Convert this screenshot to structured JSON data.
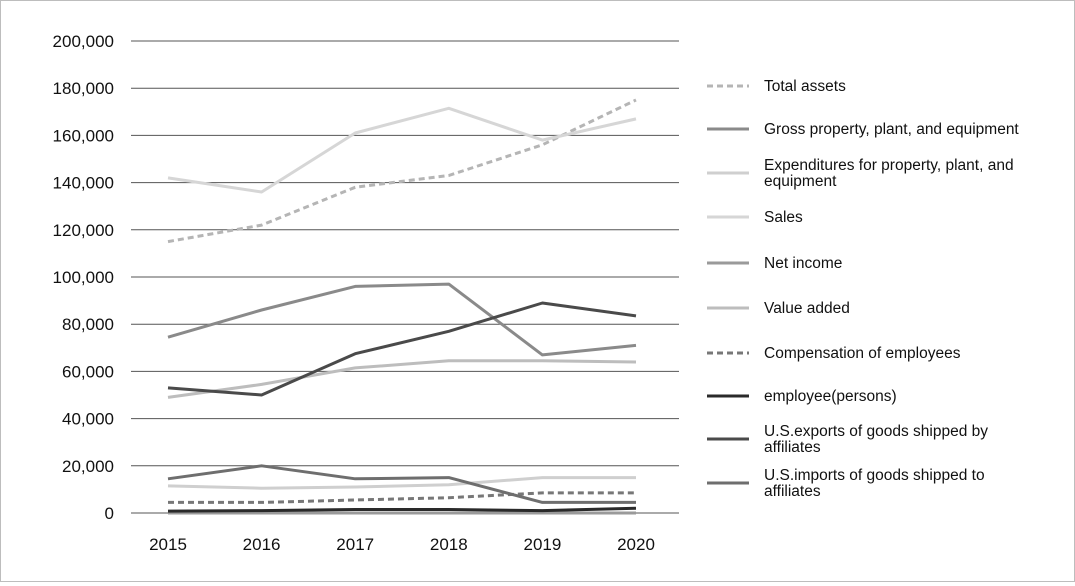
{
  "chart_data": {
    "type": "line",
    "title": "",
    "xlabel": "",
    "ylabel": "",
    "x": [
      "2015",
      "2016",
      "2017",
      "2018",
      "2019",
      "2020"
    ],
    "ylim": [
      0,
      200000
    ],
    "y_ticks": [
      "0",
      "20,000",
      "40,000",
      "60,000",
      "80,000",
      "100,000",
      "120,000",
      "140,000",
      "160,000",
      "180,000",
      "200,000"
    ],
    "grid": "horizontal",
    "legend_position": "right",
    "series": [
      {
        "name": "Total assets",
        "color": "#b5b5b5",
        "dash": true,
        "values": [
          115000,
          122000,
          138000,
          143000,
          156000,
          175000
        ]
      },
      {
        "name": "Gross property, plant, and equipment",
        "color": "#8a8a8a",
        "dash": false,
        "values": [
          74500,
          86000,
          96000,
          97000,
          67000,
          71000
        ]
      },
      {
        "name": "Expenditures for property, plant, and equipment",
        "color": "#cfcfcf",
        "dash": false,
        "values": [
          11500,
          10500,
          11000,
          12000,
          15000,
          15000
        ]
      },
      {
        "name": "Sales",
        "color": "#d6d6d6",
        "dash": false,
        "values": [
          142000,
          136000,
          161000,
          171500,
          158000,
          167000
        ]
      },
      {
        "name": "Net income",
        "color": "#9a9a9a",
        "dash": false,
        "values": [
          0,
          0,
          0,
          0,
          0,
          0
        ]
      },
      {
        "name": "Value added",
        "color": "#bdbdbd",
        "dash": false,
        "values": [
          49000,
          54500,
          61500,
          64500,
          64500,
          64000
        ]
      },
      {
        "name": "Compensation of employees",
        "color": "#777777",
        "dash": true,
        "values": [
          4500,
          4500,
          5500,
          6500,
          8500,
          8500
        ]
      },
      {
        "name": "employee(persons)",
        "color": "#2a2a2a",
        "dash": false,
        "values": [
          800,
          1000,
          1500,
          1500,
          1000,
          2000
        ]
      },
      {
        "name": "U.S.exports of goods shipped by affiliates",
        "color": "#4a4a4a",
        "dash": false,
        "values": [
          53000,
          50000,
          67500,
          77000,
          89000,
          83500
        ]
      },
      {
        "name": "U.S.imports of goods shipped to affiliates",
        "color": "#6e6e6e",
        "dash": false,
        "values": [
          14500,
          20000,
          14500,
          15000,
          4500,
          4500
        ]
      }
    ]
  }
}
